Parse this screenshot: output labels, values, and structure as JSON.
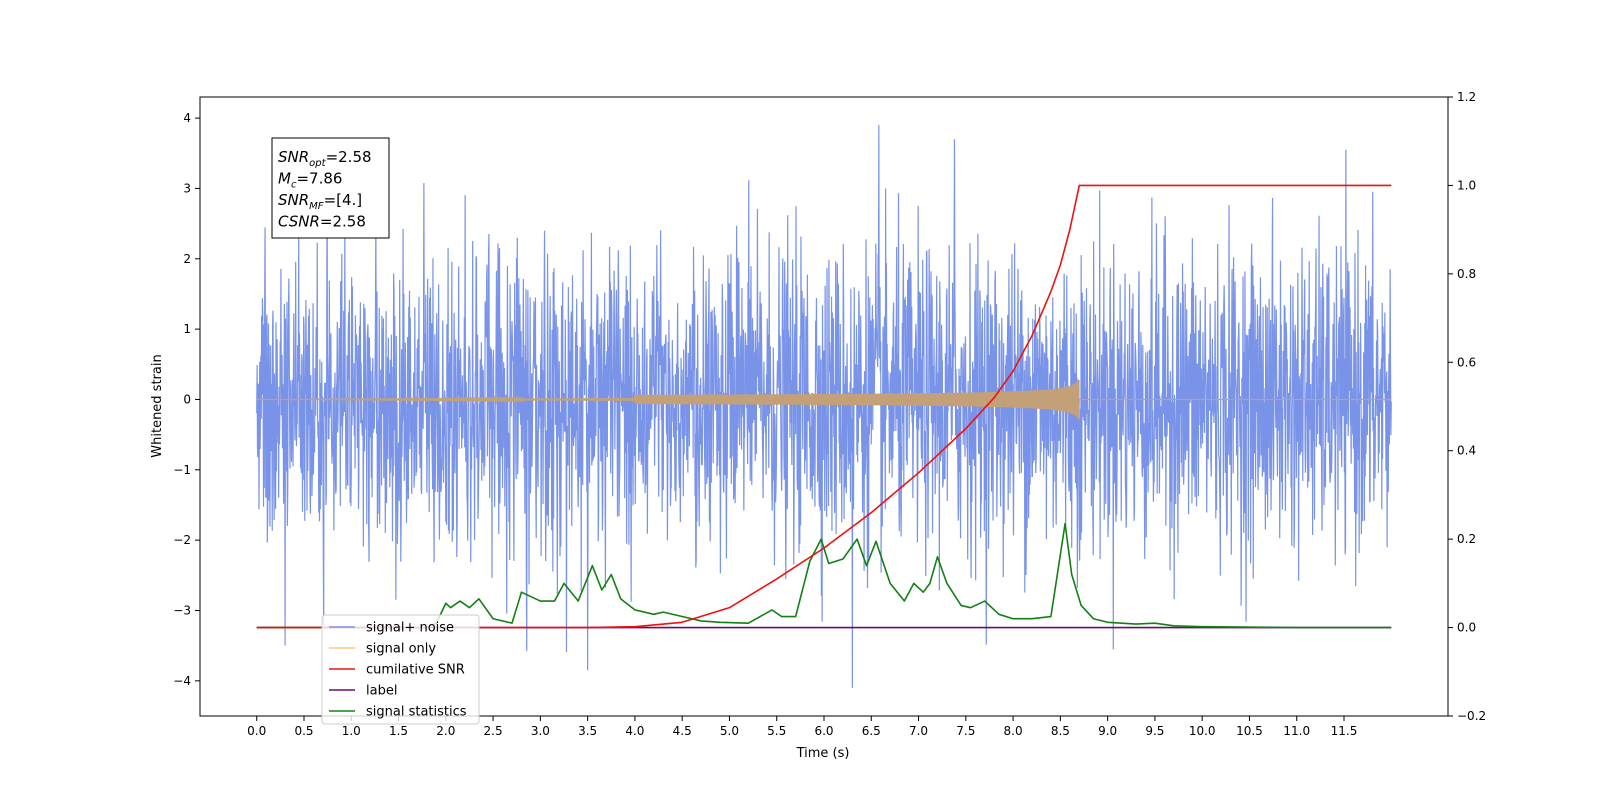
{
  "chart_data": {
    "type": "line",
    "title": "",
    "xlabel": "Time (s)",
    "ylabel": "Whitened strain",
    "ylabel_right": "",
    "xlim": [
      -0.6,
      12.6
    ],
    "ylim": [
      -4.5,
      4.3
    ],
    "ylim_right": [
      -0.2,
      1.2
    ],
    "x_ticks": [
      "0.0",
      "0.5",
      "1.0",
      "1.5",
      "2.0",
      "2.5",
      "3.0",
      "3.5",
      "4.0",
      "4.5",
      "5.0",
      "5.5",
      "6.0",
      "6.5",
      "7.0",
      "7.5",
      "8.0",
      "8.5",
      "9.0",
      "9.5",
      "10.0",
      "10.5",
      "11.0",
      "11.5"
    ],
    "y_ticks": [
      "−4",
      "−3",
      "−2",
      "−1",
      "0",
      "1",
      "2",
      "3",
      "4"
    ],
    "y_ticks_right": [
      "−0.2",
      "0.0",
      "0.2",
      "0.4",
      "0.6",
      "0.8",
      "1.0",
      "1.2"
    ],
    "annotation": {
      "lines": [
        {
          "base": "SNR",
          "sub": "opt",
          "value": "=2.58"
        },
        {
          "base": "M",
          "sub": "c",
          "value": "=7.86"
        },
        {
          "base": "SNR",
          "sub": "MF",
          "value": "=[4.]"
        },
        {
          "base": "CSNR",
          "sub": "",
          "value": "=2.58"
        }
      ]
    },
    "legend": {
      "placement": "lower-left",
      "entries": [
        {
          "label": "signal+ noise",
          "color": "#7893e8"
        },
        {
          "label": "signal only",
          "color": "#ffc880"
        },
        {
          "label": "cumilative SNR",
          "color": "#ee1111"
        },
        {
          "label": "label",
          "color": "#6a0a6a"
        },
        {
          "label": "signal statistics",
          "color": "#138013"
        }
      ]
    },
    "series": [
      {
        "name": "signal+ noise",
        "axis": "left",
        "color": "#7893e8",
        "description_kind": "noise",
        "t_range": [
          0.0,
          12.0
        ],
        "amplitude_sigma": 1.0,
        "peak_max": 3.9,
        "peak_min": -4.1
      },
      {
        "name": "signal only",
        "axis": "left",
        "color": "#c4a078",
        "t_range": [
          0.0,
          12.0
        ],
        "chirp_end": 8.7,
        "chirp_peak_amplitude": 0.3
      },
      {
        "name": "cumilative SNR",
        "axis": "right",
        "color": "#ee1111",
        "x": [
          0.0,
          3.5,
          4.0,
          4.5,
          5.0,
          5.5,
          6.0,
          6.5,
          7.0,
          7.5,
          7.8,
          8.0,
          8.2,
          8.4,
          8.5,
          8.6,
          8.7,
          9.0,
          10.0,
          11.0,
          12.0
        ],
        "y": [
          0.0,
          0.0,
          0.002,
          0.012,
          0.045,
          0.11,
          0.18,
          0.26,
          0.35,
          0.45,
          0.52,
          0.58,
          0.66,
          0.76,
          0.82,
          0.9,
          1.0,
          1.0,
          1.0,
          1.0,
          1.0
        ]
      },
      {
        "name": "label",
        "axis": "right",
        "color": "#6a0a6a",
        "x": [
          0.0,
          12.0
        ],
        "y": [
          0.0,
          0.0
        ]
      },
      {
        "name": "signal statistics",
        "axis": "right",
        "color": "#138013",
        "x": [
          0.0,
          1.8,
          1.9,
          2.0,
          2.05,
          2.15,
          2.25,
          2.35,
          2.5,
          2.7,
          2.8,
          3.0,
          3.15,
          3.25,
          3.4,
          3.55,
          3.65,
          3.75,
          3.85,
          4.0,
          4.2,
          4.3,
          4.5,
          4.7,
          4.9,
          5.2,
          5.45,
          5.55,
          5.7,
          5.85,
          5.97,
          6.05,
          6.2,
          6.35,
          6.45,
          6.55,
          6.7,
          6.85,
          6.95,
          7.05,
          7.12,
          7.2,
          7.3,
          7.45,
          7.55,
          7.7,
          7.85,
          8.0,
          8.2,
          8.4,
          8.55,
          8.62,
          8.72,
          8.85,
          9.0,
          9.3,
          9.5,
          9.7,
          10.0,
          11.0,
          12.0
        ],
        "y": [
          0.0,
          0.0,
          0.01,
          0.055,
          0.045,
          0.06,
          0.045,
          0.065,
          0.02,
          0.01,
          0.08,
          0.06,
          0.06,
          0.1,
          0.06,
          0.14,
          0.085,
          0.12,
          0.065,
          0.04,
          0.03,
          0.035,
          0.025,
          0.015,
          0.012,
          0.01,
          0.04,
          0.025,
          0.025,
          0.15,
          0.2,
          0.145,
          0.155,
          0.2,
          0.14,
          0.195,
          0.1,
          0.06,
          0.1,
          0.08,
          0.1,
          0.16,
          0.1,
          0.05,
          0.045,
          0.06,
          0.03,
          0.02,
          0.02,
          0.025,
          0.235,
          0.12,
          0.05,
          0.02,
          0.012,
          0.008,
          0.01,
          0.004,
          0.002,
          0.0,
          0.0
        ]
      }
    ]
  }
}
